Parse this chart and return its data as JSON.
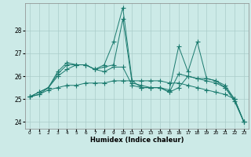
{
  "xlabel": "Humidex (Indice chaleur)",
  "x": [
    0,
    1,
    2,
    3,
    4,
    5,
    6,
    7,
    8,
    9,
    10,
    11,
    12,
    13,
    14,
    15,
    16,
    17,
    18,
    19,
    20,
    21,
    22,
    23
  ],
  "series": [
    [
      25.1,
      25.3,
      25.5,
      26.1,
      26.5,
      26.5,
      26.5,
      26.3,
      26.2,
      26.4,
      26.4,
      25.6,
      25.5,
      25.5,
      25.5,
      25.3,
      26.1,
      26.0,
      25.9,
      25.8,
      25.7,
      25.5,
      24.9,
      24.0
    ],
    [
      25.1,
      25.3,
      25.5,
      26.2,
      26.6,
      26.5,
      26.5,
      26.3,
      26.5,
      27.5,
      29.0,
      25.8,
      25.5,
      25.5,
      25.5,
      25.4,
      27.3,
      26.2,
      27.5,
      25.9,
      25.8,
      25.5,
      25.0,
      24.0
    ],
    [
      25.1,
      25.2,
      25.5,
      26.0,
      26.3,
      26.5,
      26.5,
      26.3,
      26.4,
      26.5,
      28.5,
      25.7,
      25.6,
      25.5,
      25.5,
      25.3,
      25.5,
      26.0,
      25.9,
      25.9,
      25.8,
      25.6,
      25.0,
      24.0
    ],
    [
      25.1,
      25.2,
      25.4,
      25.5,
      25.6,
      25.6,
      25.7,
      25.7,
      25.7,
      25.8,
      25.8,
      25.8,
      25.8,
      25.8,
      25.8,
      25.7,
      25.7,
      25.6,
      25.5,
      25.4,
      25.3,
      25.2,
      25.0,
      24.0
    ]
  ],
  "line_color": "#1a7a6e",
  "bg_color": "#cceae7",
  "grid_color": "#aaccca",
  "ylim": [
    23.7,
    29.2
  ],
  "yticks": [
    24,
    25,
    26,
    27,
    28
  ],
  "marker": "+",
  "markersize": 4
}
